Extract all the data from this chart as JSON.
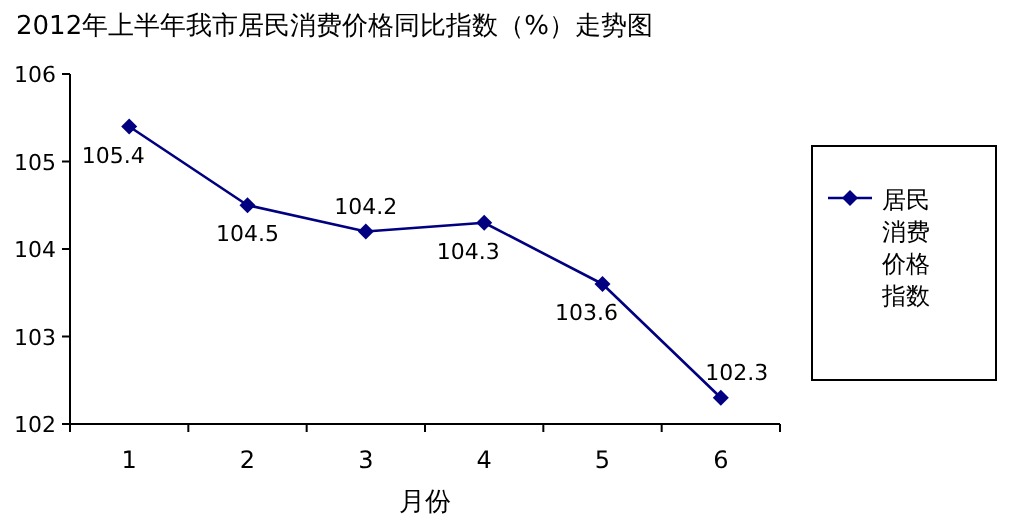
{
  "chart_data": {
    "type": "line",
    "title": "2012年上半年我市居民消费价格同比指数（%）走势图",
    "xlabel": "月份",
    "categories": [
      "1",
      "2",
      "3",
      "4",
      "5",
      "6"
    ],
    "series": [
      {
        "name": "居民消费价格指数",
        "color": "#000080",
        "values": [
          105.4,
          104.5,
          104.2,
          104.3,
          103.6,
          102.3
        ]
      }
    ],
    "ylim": [
      102,
      106
    ],
    "yticks": [
      102,
      103,
      104,
      105,
      106
    ],
    "data_labels": true,
    "marker": "diamond",
    "legend": "right",
    "grid": false
  }
}
